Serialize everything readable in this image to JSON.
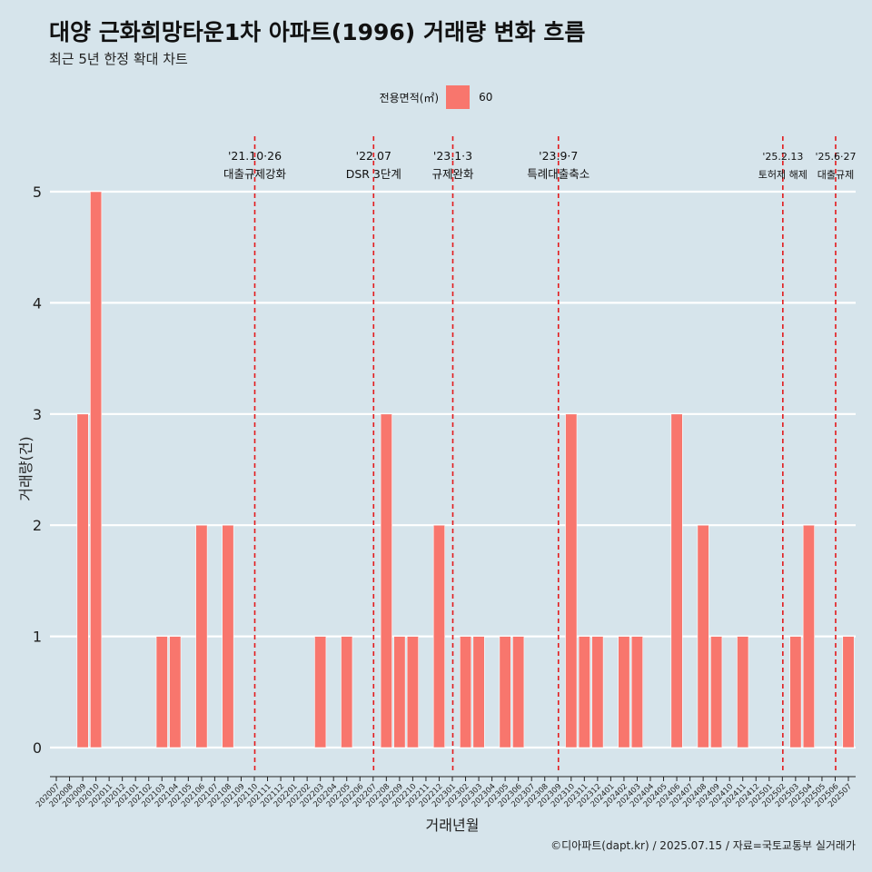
{
  "title": "대양 근화희망타운1차 아파트(1996) 거래량 변화 흐름",
  "subtitle": "최근 5년 한정 확대 차트",
  "caption": "©디아파트(dapt.kr) / 2025.07.15 / 자료=국토교통부 실거래가",
  "colors": {
    "background": "#d6e4eb",
    "bar": "#f8766d",
    "event_line": "#e31a1c",
    "grid": "#ffffff"
  },
  "chart_data": {
    "type": "bar",
    "xlabel": "거래년월",
    "ylabel": "거래량(건)",
    "ylim": [
      0,
      5
    ],
    "yticks": [
      0,
      1,
      2,
      3,
      4,
      5
    ],
    "legend": {
      "title": "전용면적(㎡)",
      "placement": "top",
      "entries": [
        "60"
      ]
    },
    "categories": [
      "202007",
      "202008",
      "202009",
      "202010",
      "202011",
      "202012",
      "202101",
      "202102",
      "202103",
      "202104",
      "202105",
      "202106",
      "202107",
      "202108",
      "202109",
      "202110",
      "202111",
      "202112",
      "202201",
      "202202",
      "202203",
      "202204",
      "202205",
      "202206",
      "202207",
      "202208",
      "202209",
      "202210",
      "202211",
      "202212",
      "202301",
      "202302",
      "202303",
      "202304",
      "202305",
      "202306",
      "202307",
      "202308",
      "202309",
      "202310",
      "202311",
      "202312",
      "202401",
      "202402",
      "202403",
      "202404",
      "202405",
      "202406",
      "202407",
      "202408",
      "202409",
      "202410",
      "202411",
      "202412",
      "202501",
      "202502",
      "202503",
      "202504",
      "202505",
      "202506",
      "202507"
    ],
    "series": [
      {
        "name": "60",
        "values": [
          0,
          0,
          3,
          5,
          0,
          0,
          0,
          0,
          1,
          1,
          0,
          2,
          0,
          2,
          0,
          0,
          0,
          0,
          0,
          0,
          1,
          0,
          1,
          0,
          0,
          3,
          1,
          1,
          0,
          2,
          0,
          1,
          1,
          0,
          1,
          1,
          0,
          0,
          0,
          3,
          1,
          1,
          0,
          1,
          1,
          0,
          0,
          3,
          0,
          2,
          1,
          0,
          1,
          0,
          0,
          0,
          1,
          2,
          0,
          0,
          1
        ]
      }
    ],
    "annotations": [
      {
        "x": "202110",
        "date": "'21.10·26",
        "label": "대출규제강화"
      },
      {
        "x": "202207",
        "date": "'22.07",
        "label": "DSR 3단계"
      },
      {
        "x": "202301",
        "date": "'23.1·3",
        "label": "규제완화"
      },
      {
        "x": "202309",
        "date": "'23.9·7",
        "label": "특례대출축소"
      },
      {
        "x": "202502",
        "date": "'25.2.13",
        "label": "토허제 해제"
      },
      {
        "x": "202506",
        "date": "'25.6·27",
        "label": "대출규제"
      }
    ]
  }
}
